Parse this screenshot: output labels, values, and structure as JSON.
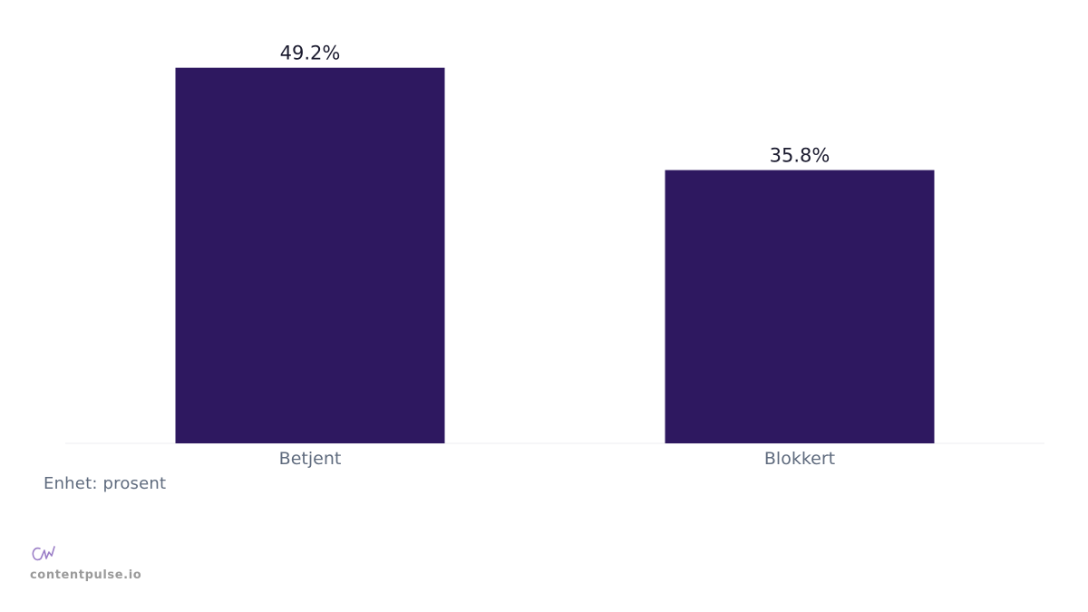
{
  "chart_data": {
    "type": "bar",
    "categories": [
      "Betjent",
      "Blokkert"
    ],
    "values": [
      49.2,
      35.8
    ],
    "value_labels": [
      "49.2%",
      "35.8%"
    ],
    "ylim": [
      0,
      50
    ],
    "grid": false,
    "bar_color": "#2e1860"
  },
  "note": {
    "unit_text": "Enhet: prosent"
  },
  "brand": {
    "text": "contentpulse.io",
    "logo_icon": "contentpulse-logo-icon",
    "logo_color": "#9b7fc7"
  }
}
